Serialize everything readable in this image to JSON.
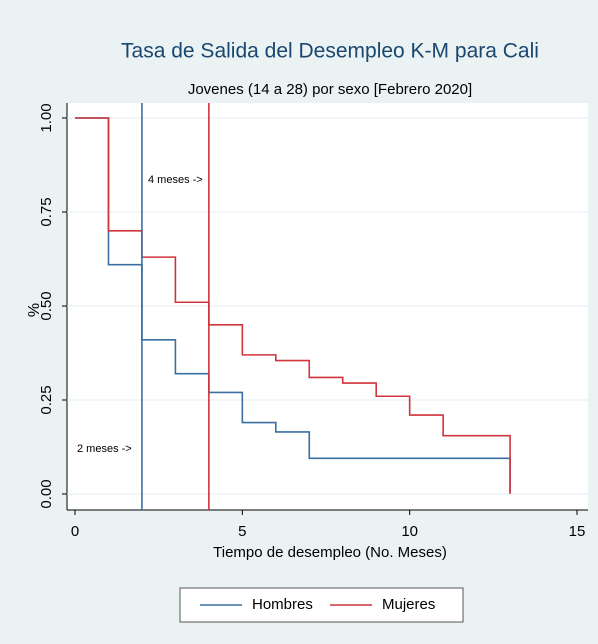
{
  "chart_data": {
    "type": "step",
    "title": "Tasa de Salida del Desempleo K-M para Cali",
    "subtitle": "Jovenes (14 a 28) por sexo [Febrero 2020]",
    "x_label": "Tiempo de desempleo (No. Meses)",
    "y_label": "%",
    "x": [
      0,
      1,
      2,
      3,
      4,
      5,
      6,
      7,
      8,
      9,
      10,
      11,
      12,
      13
    ],
    "series": [
      {
        "name": "Hombres",
        "color": "#3b6fa0",
        "values": [
          1.0,
          0.61,
          0.41,
          0.32,
          0.27,
          0.19,
          0.165,
          0.095,
          0.095,
          0.095,
          0.095,
          0.095,
          0.095,
          0.005
        ]
      },
      {
        "name": "Mujeres",
        "color": "#d0343c",
        "values": [
          1.0,
          0.7,
          0.63,
          0.51,
          0.45,
          0.37,
          0.355,
          0.31,
          0.295,
          0.26,
          0.21,
          0.155,
          0.155,
          0.0
        ]
      }
    ],
    "reference_lines": [
      {
        "x": 2,
        "color": "#3b6fa0"
      },
      {
        "x": 4,
        "color": "#d0343c"
      }
    ],
    "annotations": [
      "4 meses ->",
      "2 meses ->"
    ],
    "xlim": [
      0,
      15
    ],
    "ylim": [
      0,
      1
    ],
    "xticks": [
      0,
      5,
      10,
      15
    ],
    "yticks": [
      {
        "value": 0,
        "label": "0.00"
      },
      {
        "value": 0.25,
        "label": "0.25"
      },
      {
        "value": 0.5,
        "label": "0.50"
      },
      {
        "value": 0.75,
        "label": "0.75"
      },
      {
        "value": 1,
        "label": "1.00"
      }
    ],
    "grid": true
  }
}
